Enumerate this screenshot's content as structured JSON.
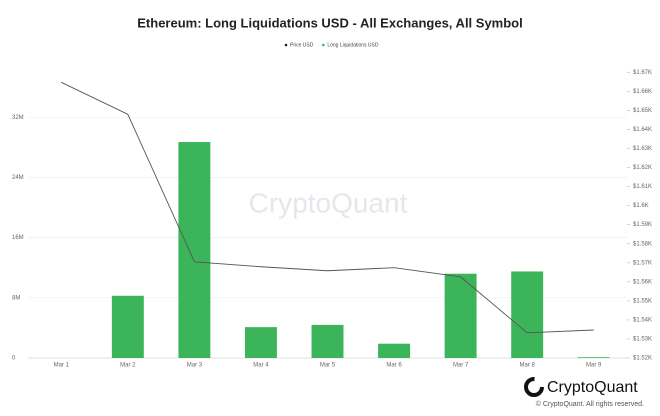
{
  "chart_data": {
    "type": "combo",
    "title": "Ethereum: Long Liquidations USD - All Exchanges, All Symbol",
    "watermark": "CryptoQuant",
    "brand": "CryptoQuant",
    "copyright": "© CryptoQuant. All rights reserved.",
    "categories": [
      "Mar 1",
      "Mar 2",
      "Mar 3",
      "Mar 4",
      "Mar 5",
      "Mar 6",
      "Mar 7",
      "Mar 8",
      "Mar 9"
    ],
    "series": [
      {
        "name": "Price USD",
        "type": "line",
        "axis": "y2",
        "color": "#555555",
        "values": [
          1664.7,
          1647.9,
          1570.5,
          1567.9,
          1565.8,
          1567.4,
          1562.6,
          1533.2,
          1534.7
        ]
      },
      {
        "name": "Long Liquidations USD",
        "type": "bar",
        "color": "#3cb55a",
        "values": [
          0,
          8270000,
          28700000,
          4100000,
          4400000,
          1900000,
          11200000,
          11500000,
          100000
        ]
      }
    ],
    "ylim": [
      0,
      40000000
    ],
    "yticks": [
      0,
      {
        "value": 8000000,
        "label": "8M"
      },
      {
        "value": 16000000,
        "label": "16M"
      },
      {
        "value": 24000000,
        "label": "24M"
      },
      {
        "value": 32000000,
        "label": "32M"
      }
    ],
    "y2lim": [
      1520,
      1678
    ],
    "y2ticks": [
      {
        "value": 1520,
        "label": "$1.52K"
      },
      {
        "value": 1530,
        "label": "$1.53K"
      },
      {
        "value": 1540,
        "label": "$1.54K"
      },
      {
        "value": 1550,
        "label": "$1.55K"
      },
      {
        "value": 1560,
        "label": "$1.56K"
      },
      {
        "value": 1570,
        "label": "$1.57K"
      },
      {
        "value": 1580,
        "label": "$1.58K"
      },
      {
        "value": 1590,
        "label": "$1.59K"
      },
      {
        "value": 1600,
        "label": "$1.6K"
      },
      {
        "value": 1610,
        "label": "$1.61K"
      },
      {
        "value": 1620,
        "label": "$1.62K"
      },
      {
        "value": 1630,
        "label": "$1.63K"
      },
      {
        "value": 1640,
        "label": "$1.64K"
      },
      {
        "value": 1650,
        "label": "$1.65K"
      },
      {
        "value": 1660,
        "label": "$1.66K"
      },
      {
        "value": 1670,
        "label": "$1.67K"
      }
    ],
    "grid": true
  }
}
